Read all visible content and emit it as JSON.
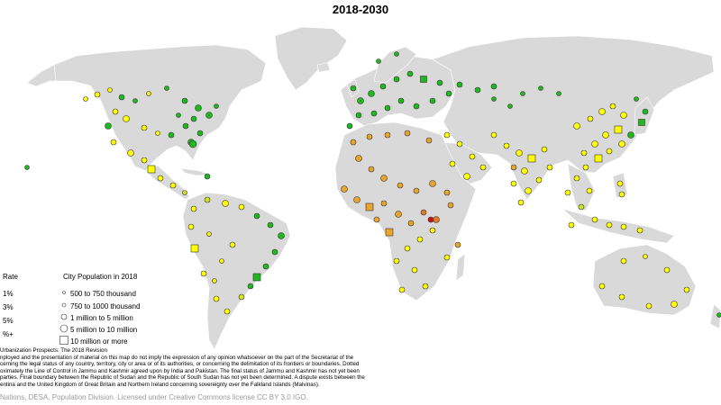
{
  "title": "2018-2030",
  "legend": {
    "rate_title": "Rate",
    "rate_items": [
      {
        "label": "1%",
        "color": "#1fb81f"
      },
      {
        "label": "3%",
        "color": "#cfe41c"
      },
      {
        "label": "5%",
        "color": "#e9d21e"
      },
      {
        "label": "%+",
        "color": "#e8a52a"
      }
    ],
    "extra_colors": [
      "#ffff00",
      "#e07a20",
      "#cc1111"
    ],
    "size_title": "City Population in 2018",
    "size_items": [
      {
        "label": "500 to 750 thousand",
        "shape": "circle"
      },
      {
        "label": "750 to 1000 thousand",
        "shape": "circle"
      },
      {
        "label": "1 million to 5 million",
        "shape": "circle"
      },
      {
        "label": "5 million to 10 million",
        "shape": "circle"
      },
      {
        "label": "10 million or more",
        "shape": "square"
      }
    ]
  },
  "notes": [
    "Urbanization Prospects: The 2018 Revision",
    "nployed and the presentation of material on this map do not imply the expression of any opinion whatsoever on the part of the Secretariat of the",
    "cerning the legal status of any country, territory, city or area or of its authorities, or concerning the delimitation of its frontiers or boundaries. Dotted",
    "oximately the Line of Control in Jammu and Kashmir agreed upon by India and Pakistan. The final status of Jammu and Kashmir has not yet been",
    "parties. Final boundary between the Republic of Sudan and the Republic of South Sudan has not yet been determined. A dispute exists between the",
    "entina and the United Kingdom of Great Britain and Northern Ireland concerning sovereignty over the Falkland Islands (Malvinas)."
  ],
  "credit": "Nations, DESA, Population Division. Licensed under Creative Commons license CC BY 3.0 IGO."
}
